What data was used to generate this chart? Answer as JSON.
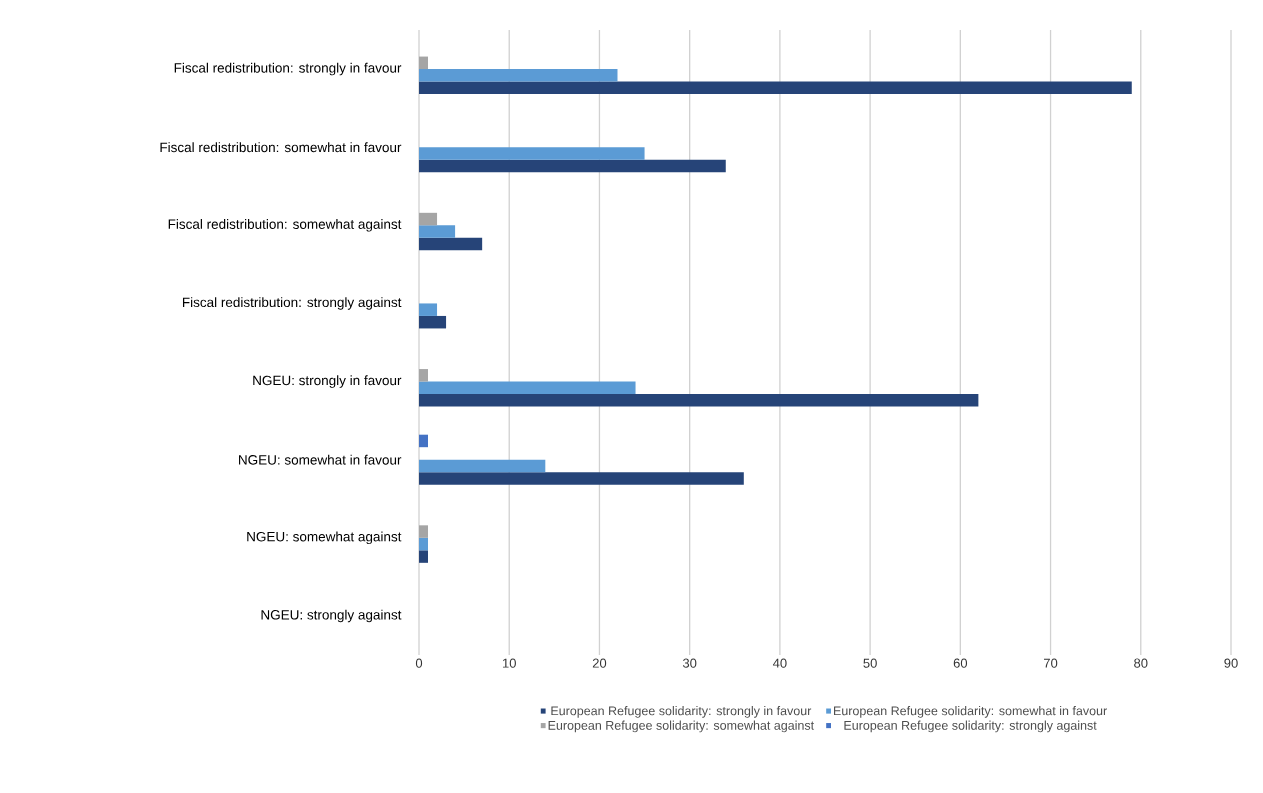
{
  "chart_data": {
    "type": "bar",
    "orientation": "horizontal",
    "categories": [
      "Fiscal redistribution: strongly in favour",
      "Fiscal redistribution: somewhat in favour",
      "Fiscal redistribution: somewhat against",
      "Fiscal redistribution: strongly against",
      "NGEU: strongly in favour",
      "NGEU: somewhat in favour",
      "NGEU: somewhat against",
      "NGEU: strongly against"
    ],
    "series": [
      {
        "name": "European Refugee solidarity: strongly in favour",
        "color": "#264478",
        "values": [
          79,
          34,
          7,
          3,
          62,
          36,
          1,
          null
        ]
      },
      {
        "name": "European Refugee solidarity: somewhat in favour",
        "color": "#5b9bd5",
        "values": [
          22,
          25,
          4,
          2,
          24,
          14,
          1,
          null
        ]
      },
      {
        "name": "European Refugee solidarity: somewhat against",
        "color": "#a5a5a5",
        "values": [
          1,
          null,
          2,
          null,
          1,
          null,
          1,
          null
        ]
      },
      {
        "name": "European Refugee solidarity: strongly against",
        "color": "#4472c4",
        "values": [
          null,
          null,
          null,
          null,
          null,
          1,
          null,
          null
        ]
      }
    ],
    "xlim": [
      0,
      90
    ],
    "xticks": [
      0,
      10,
      20,
      30,
      40,
      50,
      60,
      70,
      80,
      90
    ],
    "grid": "x",
    "legend": "bottom"
  }
}
